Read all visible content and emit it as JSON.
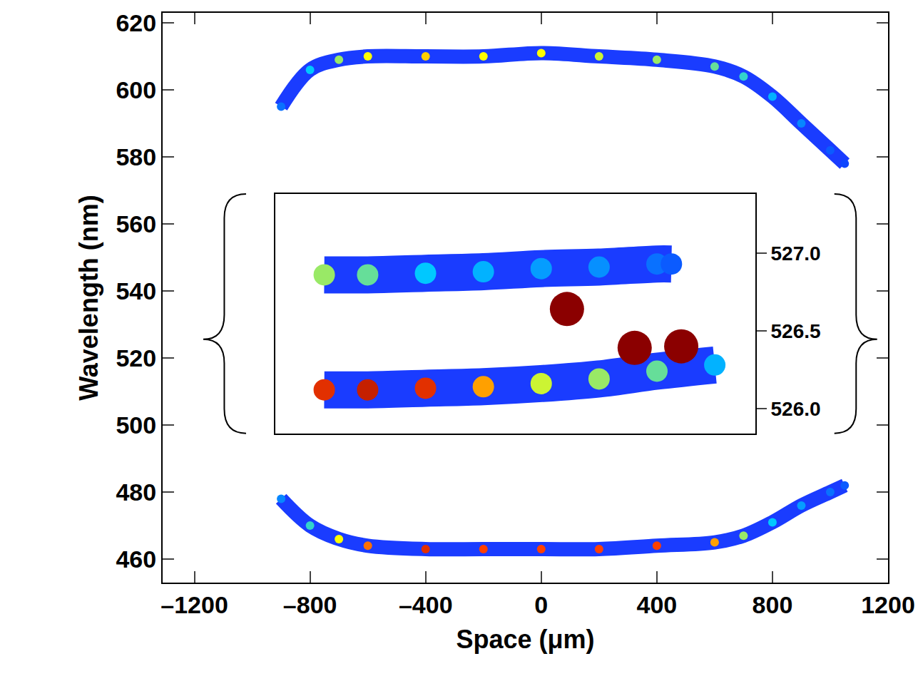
{
  "chart_data": [
    {
      "type": "line",
      "x_label": "Space (μm)",
      "y_label": "Wavelength (nm)",
      "xlim": [
        -1310,
        1200
      ],
      "ylim": [
        453,
        623
      ],
      "xticks": [
        {
          "value": -1200,
          "label": "–1200"
        },
        {
          "value": -800,
          "label": "–800"
        },
        {
          "value": -400,
          "label": "–400"
        },
        0,
        400,
        800,
        1200
      ],
      "yticks": [
        460,
        480,
        500,
        520,
        540,
        560,
        580,
        600,
        620
      ],
      "grid": false,
      "color_range": [
        0,
        1
      ],
      "series": [
        {
          "color": "#1a3cff",
          "x": [
            -900,
            -800,
            -700,
            -600,
            -400,
            -200,
            0,
            200,
            400,
            600,
            700,
            800,
            900,
            1000,
            1050
          ],
          "values": [
            595,
            606,
            609,
            610,
            610,
            610,
            611,
            610,
            609,
            607,
            604,
            598,
            590,
            582,
            578
          ],
          "intensity": [
            0.15,
            0.35,
            0.5,
            0.6,
            0.65,
            0.6,
            0.6,
            0.55,
            0.5,
            0.45,
            0.4,
            0.3,
            0.2,
            0.1,
            0.05
          ]
        },
        {
          "color": "#1a3cff",
          "x": [
            -900,
            -800,
            -700,
            -600,
            -400,
            -200,
            0,
            200,
            400,
            600,
            700,
            800,
            900,
            1000,
            1050
          ],
          "values": [
            478,
            470,
            466,
            464,
            463,
            463,
            463,
            463,
            464,
            465,
            467,
            471,
            476,
            480,
            482
          ],
          "intensity": [
            0.2,
            0.4,
            0.6,
            0.75,
            0.85,
            0.8,
            0.8,
            0.8,
            0.8,
            0.7,
            0.5,
            0.35,
            0.25,
            0.15,
            0.1
          ]
        }
      ]
    },
    {
      "type": "line",
      "xlim": [
        -920,
        740
      ],
      "ylim": [
        525.84,
        527.38
      ],
      "yticks": [
        {
          "value": 526,
          "label": "526.0"
        },
        {
          "value": 526.5,
          "label": "526.5"
        },
        {
          "value": 527,
          "label": "527.0"
        }
      ],
      "tick_labels": "y",
      "grid": false,
      "color_range": [
        0,
        1
      ],
      "series": [
        {
          "color": "#1a3cff",
          "x": [
            -750,
            -600,
            -400,
            -200,
            0,
            200,
            400,
            450
          ],
          "values": [
            526.86,
            526.86,
            526.87,
            526.88,
            526.9,
            526.91,
            526.93,
            526.93
          ],
          "intensity": [
            0.5,
            0.45,
            0.35,
            0.3,
            0.25,
            0.22,
            0.15,
            0.1
          ]
        },
        {
          "color": "#1a3cff",
          "x": [
            -750,
            -600,
            -400,
            -200,
            0,
            200,
            400,
            600
          ],
          "values": [
            526.12,
            526.12,
            526.13,
            526.14,
            526.16,
            526.19,
            526.24,
            526.28
          ],
          "intensity": [
            0.85,
            0.9,
            0.85,
            0.7,
            0.55,
            0.5,
            0.45,
            0.3
          ]
        },
        {
          "type": "scatter",
          "color": "#8b0000",
          "x": [
            89,
            323,
            484
          ],
          "values": [
            526.64,
            526.39,
            526.4
          ]
        }
      ]
    }
  ]
}
